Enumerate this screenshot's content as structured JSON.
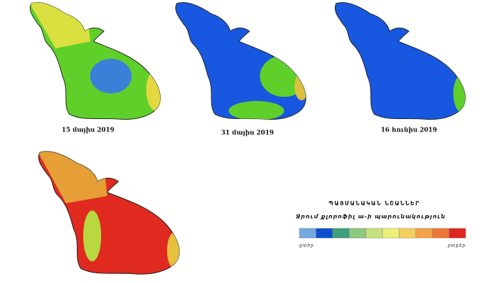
{
  "maps": [
    {
      "caption": "15 մայիս 2019"
    },
    {
      "caption": "31 մայիս 2019"
    },
    {
      "caption": "16 հունիս 2019"
    }
  ],
  "legend": {
    "title": "ՊԱՅՄԱՆԱԿԱՆ ՆՇԱՆՆԵՐ",
    "subtitle": "Ջրում քլորոֆիլ ա-ի պարունակություն",
    "colors": [
      "#74a9e0",
      "#0b4fcf",
      "#3f9f7a",
      "#8cc97e",
      "#c6e27f",
      "#eef07a",
      "#f3cf5c",
      "#f3a245",
      "#ef7536",
      "#e0241f"
    ],
    "low": "ցածր",
    "high": "բարձր"
  }
}
